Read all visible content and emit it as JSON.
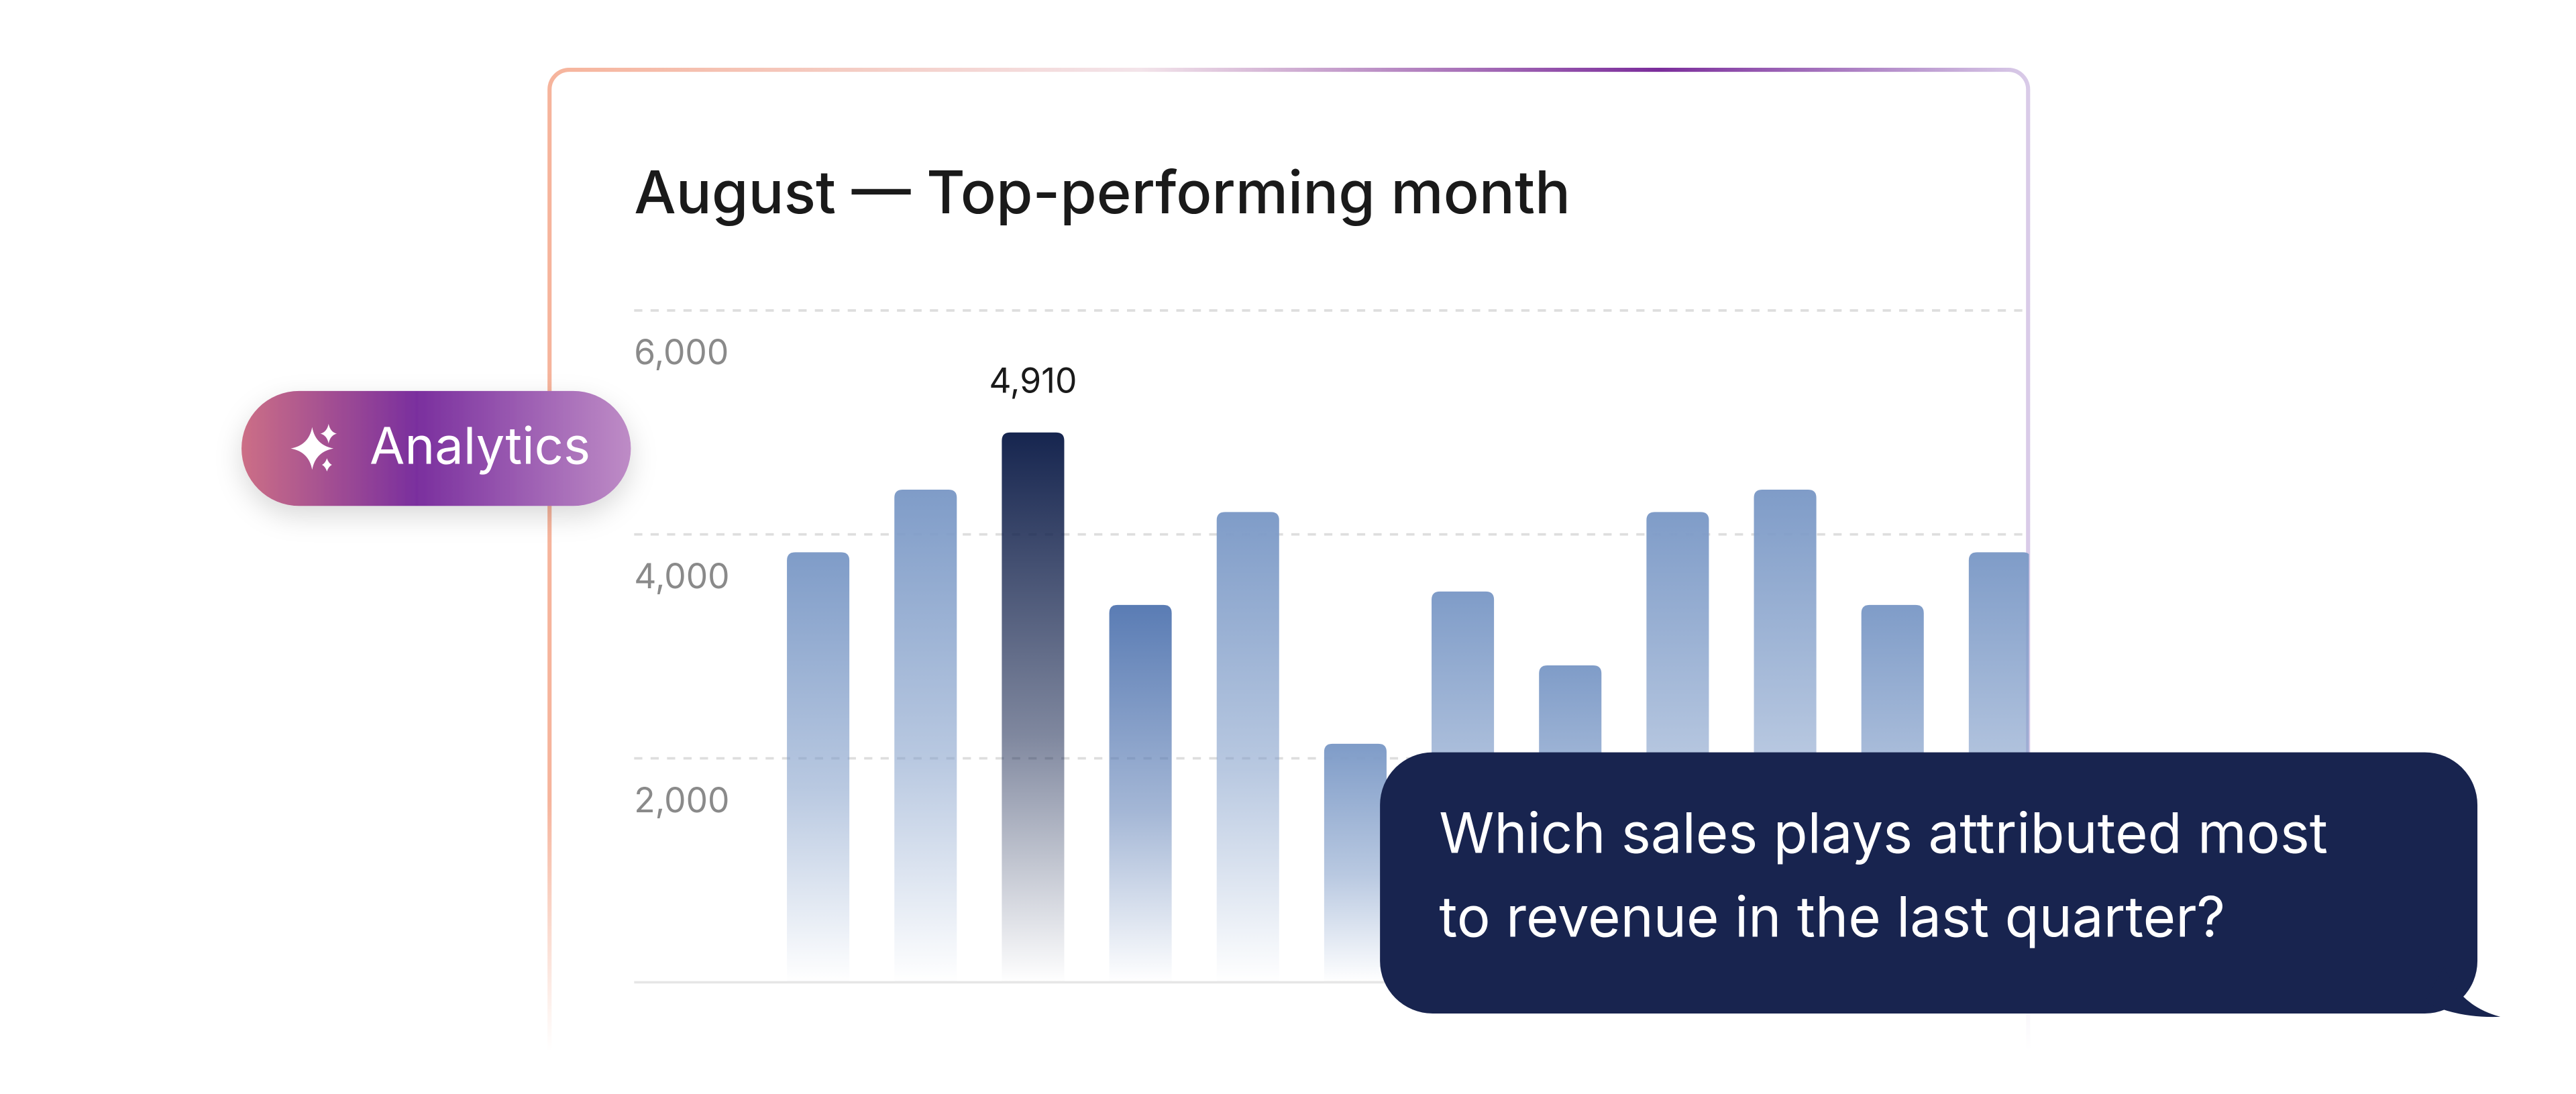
{
  "chart_data": {
    "type": "bar",
    "title": "August — Top-performing month",
    "categories": [
      null,
      null,
      null,
      null,
      null,
      null,
      null,
      null,
      null,
      null,
      null,
      null
    ],
    "values": [
      3840,
      4400,
      4910,
      3370,
      4200,
      2130,
      3490,
      2830,
      4200,
      4400,
      3370,
      3840
    ],
    "value_labels": [
      null,
      null,
      "4,910",
      null,
      null,
      null,
      null,
      null,
      null,
      null,
      null,
      null
    ],
    "colors": [
      "#7f9cc8",
      "#7f9cc8",
      "#16254f",
      "#5a7cb4",
      "#7f9cc8",
      "#7f9cc8",
      "#7f9cc8",
      "#7f9cc8",
      "#7f9cc8",
      "#7f9cc8",
      "#7f9cc8",
      "#7f9cc8"
    ],
    "ylim": [
      0,
      6000
    ],
    "yticks": [
      {
        "value": 2000,
        "label": "2,000"
      },
      {
        "value": 4000,
        "label": "4,000"
      },
      {
        "value": 6000,
        "label": "6,000"
      }
    ],
    "grid": true
  },
  "badge": {
    "label": "Analytics"
  },
  "message": {
    "lines": [
      "Which sales plays attributed most",
      "to revenue in the last quarter?"
    ]
  }
}
